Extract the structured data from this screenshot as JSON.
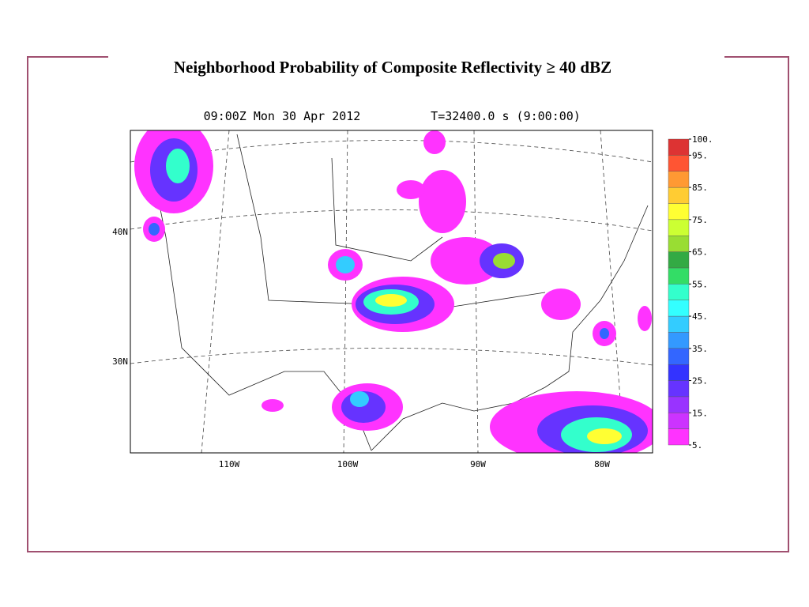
{
  "slide": {
    "title": "Neighborhood Probability of Composite Reflectivity ≥ 40 dBZ"
  },
  "map": {
    "time_label": "09:00Z Mon 30 Apr 2012",
    "run_label": "T=32400.0 s (9:00:00)",
    "lat_labels": [
      "40N",
      "30N"
    ],
    "lon_labels": [
      "110W",
      "100W",
      "90W",
      "80W"
    ],
    "colorbar": {
      "lim": [
        5,
        100
      ],
      "ticks": [
        {
          "value": 5,
          "label": "5."
        },
        {
          "value": 15,
          "label": "15."
        },
        {
          "value": 25,
          "label": "25."
        },
        {
          "value": 35,
          "label": "35."
        },
        {
          "value": 45,
          "label": "45."
        },
        {
          "value": 55,
          "label": "55."
        },
        {
          "value": 65,
          "label": "65."
        },
        {
          "value": 75,
          "label": "75."
        },
        {
          "value": 85,
          "label": "85."
        },
        {
          "value": 95,
          "label": "95."
        },
        {
          "value": 100,
          "label": "100."
        }
      ],
      "colors": [
        "#ff33ff",
        "#cc33ff",
        "#9933ff",
        "#6633ff",
        "#3333ff",
        "#3366ff",
        "#3399ff",
        "#33ccff",
        "#33ffff",
        "#33ffcc",
        "#33dd66",
        "#33aa44",
        "#99dd33",
        "#ccff33",
        "#ffff33",
        "#ffcc33",
        "#ff9933",
        "#ff5533",
        "#dd3333"
      ]
    }
  }
}
